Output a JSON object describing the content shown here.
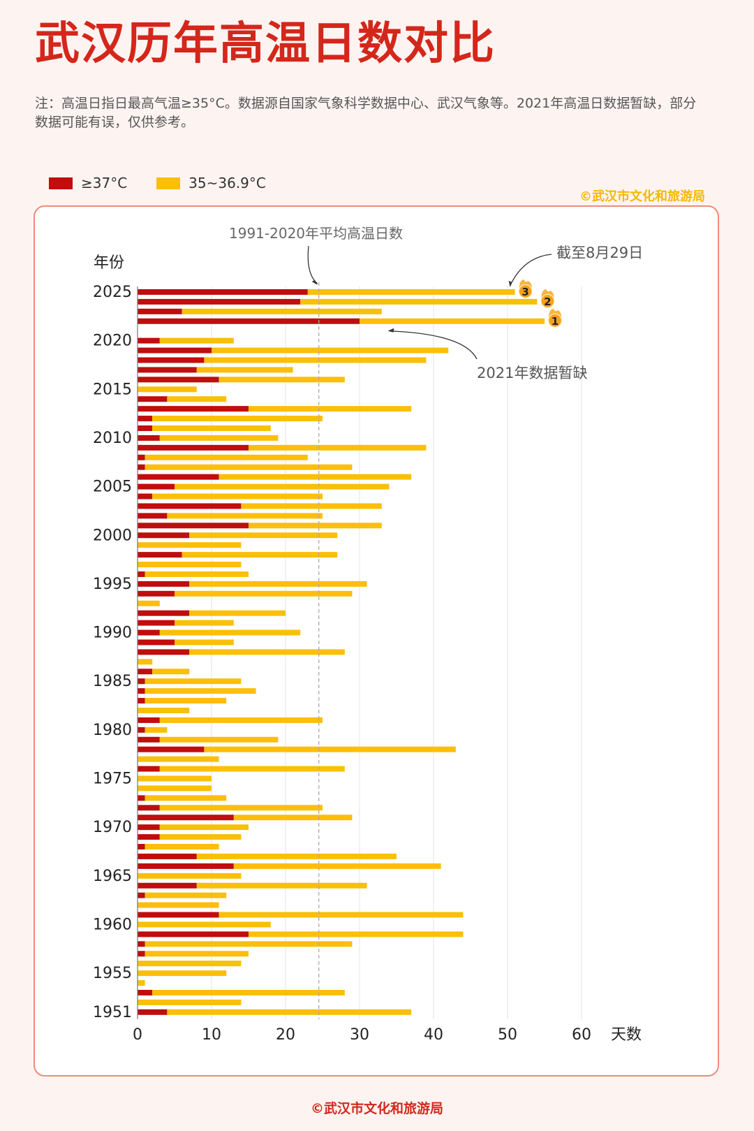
{
  "title": "武汉历年高温日数对比",
  "note": "注：高温日指日最高气温≥35°C。数据源自国家气象科学数据中心、武汉气象等。2021年高温日数据暂缺，部分数据可能有误，仅供参考。",
  "credit": "©武汉市文化和旅游局",
  "colors": {
    "red": "#c00d0d",
    "yellow": "#fbbf0a",
    "title": "#d4271b",
    "card_border": "#ef8a7a",
    "badge": "#f7a21b"
  },
  "chart_data": {
    "type": "bar",
    "orientation": "horizontal",
    "stacked": true,
    "ylabel": "年份",
    "xlabel": "天数",
    "xlim": [
      0,
      60
    ],
    "x_ticks": [
      "0",
      "10",
      "20",
      "30",
      "40",
      "50",
      "60"
    ],
    "y_ticks": [
      "2025",
      "2020",
      "2015",
      "2010",
      "2005",
      "2000",
      "1995",
      "1990",
      "1985",
      "1980",
      "1975",
      "1970",
      "1965",
      "1960",
      "1955",
      "1951"
    ],
    "grid": true,
    "legend_position": "top-left",
    "series": [
      {
        "name": "≥37°C",
        "color": "#c00d0d"
      },
      {
        "name": "35~36.9°C",
        "color": "#fbbf0a"
      }
    ],
    "years": [
      2025,
      2024,
      2023,
      2022,
      2021,
      2020,
      2019,
      2018,
      2017,
      2016,
      2015,
      2014,
      2013,
      2012,
      2011,
      2010,
      2009,
      2008,
      2007,
      2006,
      2005,
      2004,
      2003,
      2002,
      2001,
      2000,
      1999,
      1998,
      1997,
      1996,
      1995,
      1994,
      1993,
      1992,
      1991,
      1990,
      1989,
      1988,
      1987,
      1986,
      1985,
      1984,
      1983,
      1982,
      1981,
      1980,
      1979,
      1978,
      1977,
      1976,
      1975,
      1974,
      1973,
      1972,
      1971,
      1970,
      1969,
      1968,
      1967,
      1966,
      1965,
      1964,
      1963,
      1962,
      1961,
      1960,
      1959,
      1958,
      1957,
      1956,
      1955,
      1954,
      1953,
      1952,
      1951
    ],
    "ge37": [
      23,
      22,
      6,
      30,
      null,
      3,
      10,
      9,
      8,
      11,
      0,
      4,
      15,
      2,
      2,
      3,
      15,
      1,
      1,
      11,
      5,
      2,
      14,
      4,
      15,
      7,
      0,
      6,
      0,
      1,
      7,
      5,
      0,
      7,
      5,
      3,
      5,
      7,
      0,
      2,
      1,
      1,
      1,
      0,
      3,
      1,
      3,
      9,
      0,
      3,
      0,
      0,
      1,
      3,
      13,
      3,
      3,
      1,
      8,
      13,
      0,
      8,
      1,
      0,
      11,
      0,
      15,
      1,
      1,
      0,
      0,
      0,
      2,
      0,
      4
    ],
    "d35_36_9": [
      28,
      32,
      27,
      25,
      null,
      10,
      32,
      30,
      13,
      17,
      8,
      8,
      22,
      23,
      16,
      16,
      24,
      22,
      28,
      26,
      29,
      23,
      19,
      21,
      18,
      20,
      14,
      21,
      14,
      14,
      24,
      24,
      3,
      13,
      8,
      19,
      8,
      21,
      2,
      5,
      13,
      15,
      11,
      7,
      22,
      3,
      16,
      34,
      11,
      25,
      10,
      10,
      11,
      22,
      16,
      12,
      11,
      10,
      27,
      28,
      14,
      23,
      11,
      11,
      33,
      18,
      29,
      28,
      14,
      14,
      12,
      1,
      26,
      14,
      33
    ],
    "totals": [
      51,
      54,
      33,
      55,
      null,
      13,
      42,
      39,
      21,
      28,
      8,
      12,
      37,
      25,
      18,
      19,
      39,
      23,
      29,
      37,
      34,
      25,
      33,
      25,
      33,
      27,
      14,
      27,
      14,
      15,
      31,
      29,
      3,
      20,
      13,
      22,
      13,
      28,
      2,
      7,
      14,
      16,
      12,
      7,
      25,
      4,
      19,
      43,
      11,
      28,
      10,
      10,
      12,
      25,
      29,
      15,
      14,
      11,
      35,
      41,
      14,
      31,
      12,
      11,
      44,
      18,
      44,
      29,
      15,
      14,
      12,
      1,
      28,
      14,
      37
    ],
    "avg_line": {
      "value": 24.5,
      "label": "1991-2020年平均高温日数"
    },
    "annotations": [
      {
        "text": "截至8月29日",
        "year": 2025
      },
      {
        "text": "2021年数据暂缺",
        "year": 2021
      }
    ],
    "rank_badges": [
      {
        "year": 2025,
        "rank": "3"
      },
      {
        "year": 2024,
        "rank": "2"
      },
      {
        "year": 2022,
        "rank": "1"
      }
    ]
  }
}
